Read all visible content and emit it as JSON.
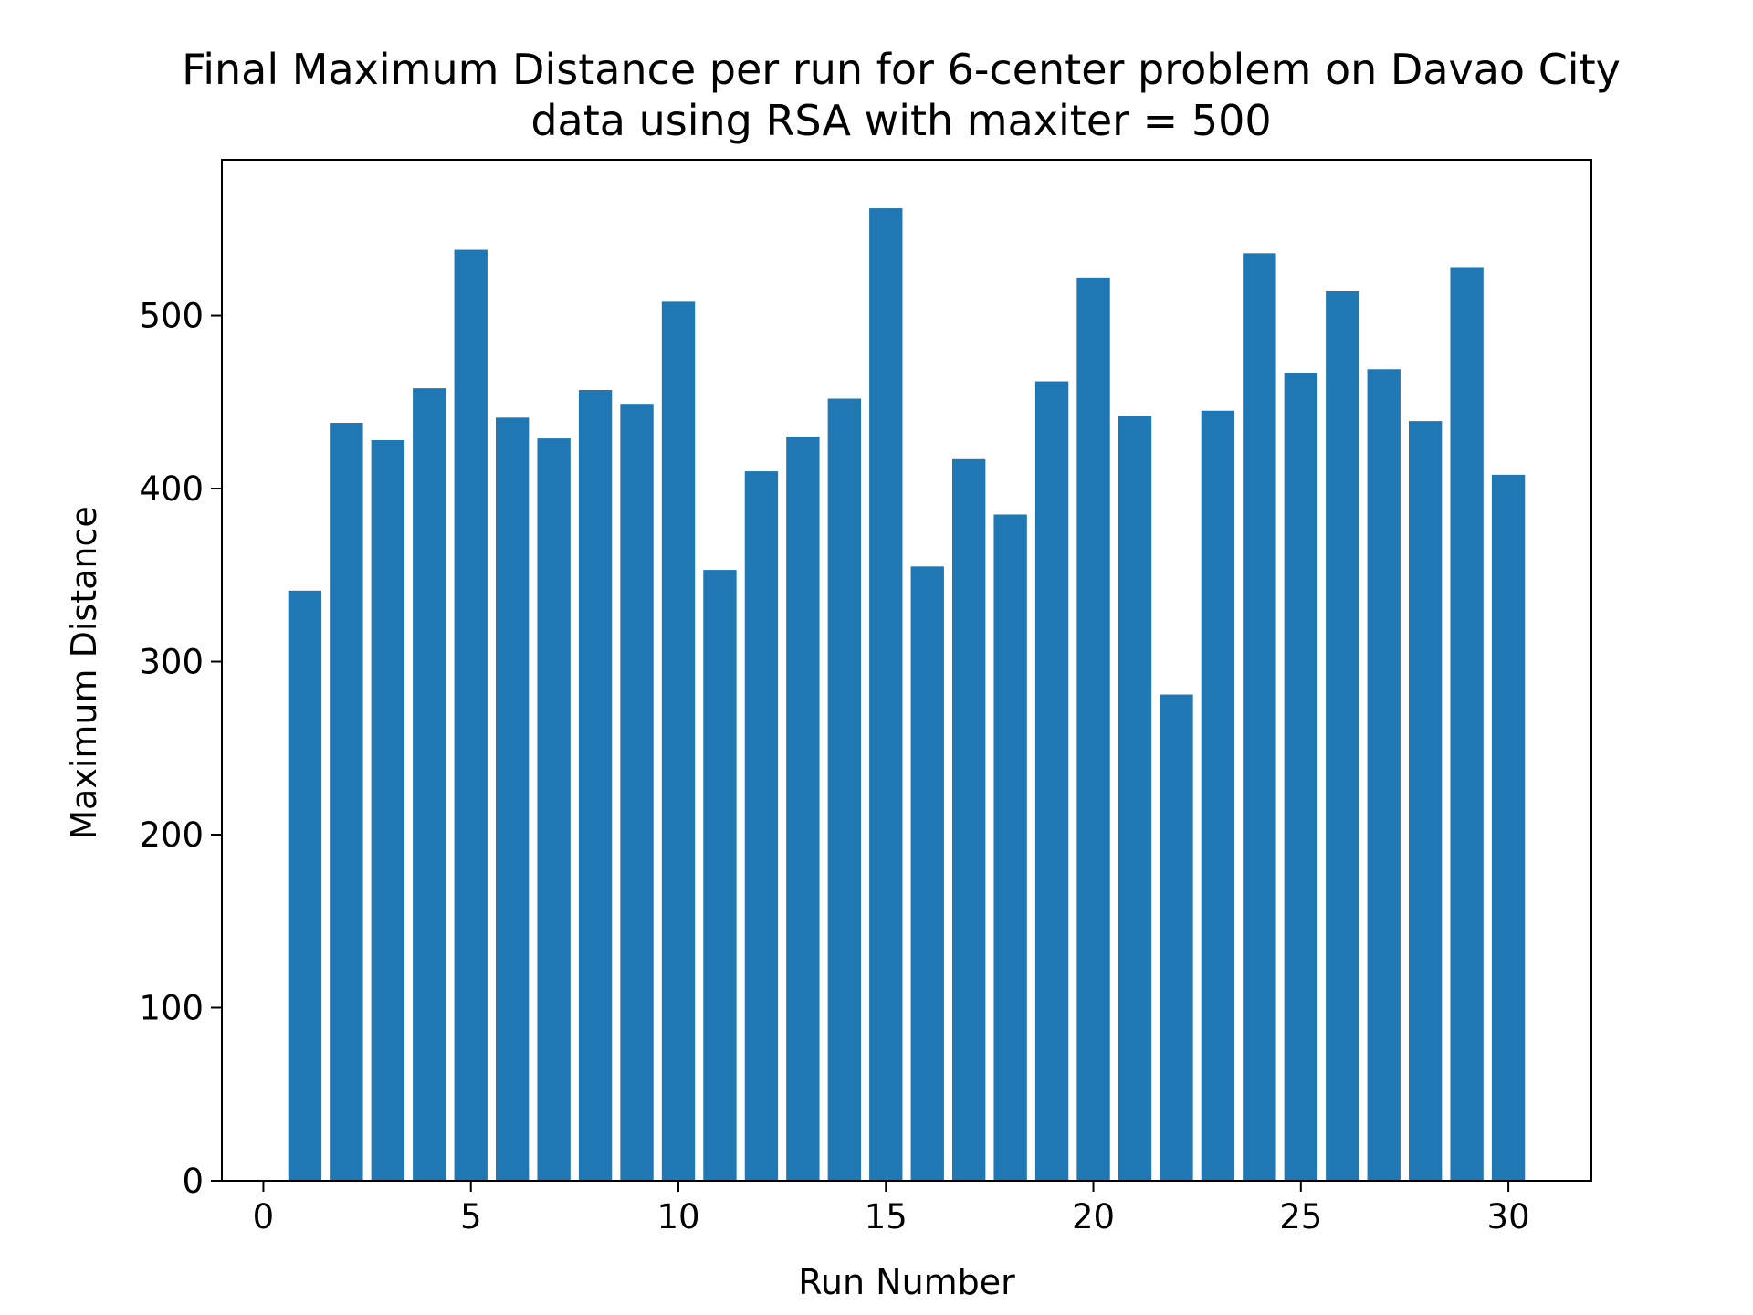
{
  "chart_data": {
    "type": "bar",
    "title_lines": [
      "Final Maximum Distance per run for 6-center problem on Davao City",
      "data  using RSA with maxiter = 500"
    ],
    "xlabel": "Run Number",
    "ylabel": "Maximum Distance",
    "bar_color": "#1f77b4",
    "xlim": [
      -1,
      32
    ],
    "ylim": [
      0,
      590
    ],
    "xticks": [
      0,
      5,
      10,
      15,
      20,
      25,
      30
    ],
    "yticks": [
      0,
      100,
      200,
      300,
      400,
      500
    ],
    "x": [
      1,
      2,
      3,
      4,
      5,
      6,
      7,
      8,
      9,
      10,
      11,
      12,
      13,
      14,
      15,
      16,
      17,
      18,
      19,
      20,
      21,
      22,
      23,
      24,
      25,
      26,
      27,
      28,
      29,
      30
    ],
    "values": [
      341,
      438,
      428,
      458,
      538,
      441,
      429,
      457,
      449,
      508,
      353,
      410,
      430,
      452,
      562,
      355,
      417,
      385,
      462,
      522,
      442,
      281,
      445,
      536,
      467,
      514,
      469,
      439,
      528,
      408
    ],
    "grid": false,
    "legend": "none"
  }
}
